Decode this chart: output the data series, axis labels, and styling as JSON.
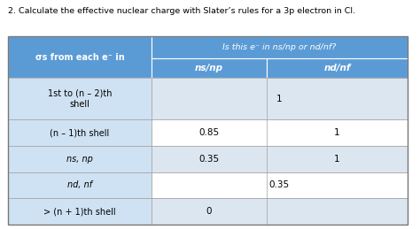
{
  "title": "2. Calculate the effective nuclear charge with Slater’s rules for a 3p electron in Cl.",
  "header_bg": "#5b9bd5",
  "header_text_color": "#ffffff",
  "row_colors": [
    "#dce6f1",
    "#ffffff",
    "#dce6f1",
    "#ffffff",
    "#dce6f1"
  ],
  "col0_bg": "#c5d9f1",
  "col0_header": "σs from each e⁻ in",
  "col1_header": "ns/np",
  "col2_header": "nd/nf",
  "merged_header": "Is this e⁻ in ns/np or nd/nf?",
  "rows": [
    {
      "label": "1st to (n – 2)th\nshell",
      "ns_np": "",
      "nd_nf": "",
      "merged_val": "1",
      "italic": false
    },
    {
      "label": "(n – 1)th shell",
      "ns_np": "0.85",
      "nd_nf": "1",
      "merged_val": "",
      "italic": false
    },
    {
      "label": "ns, np",
      "ns_np": "0.35",
      "nd_nf": "1",
      "merged_val": "",
      "italic": true
    },
    {
      "label": "nd, nf",
      "ns_np": "",
      "nd_nf": "",
      "merged_val": "0.35",
      "italic": true
    },
    {
      "label": "> (n + 1)th shell",
      "ns_np": "0",
      "nd_nf": "",
      "merged_val": "",
      "italic": false
    }
  ],
  "figsize": [
    4.74,
    2.59
  ],
  "dpi": 100
}
